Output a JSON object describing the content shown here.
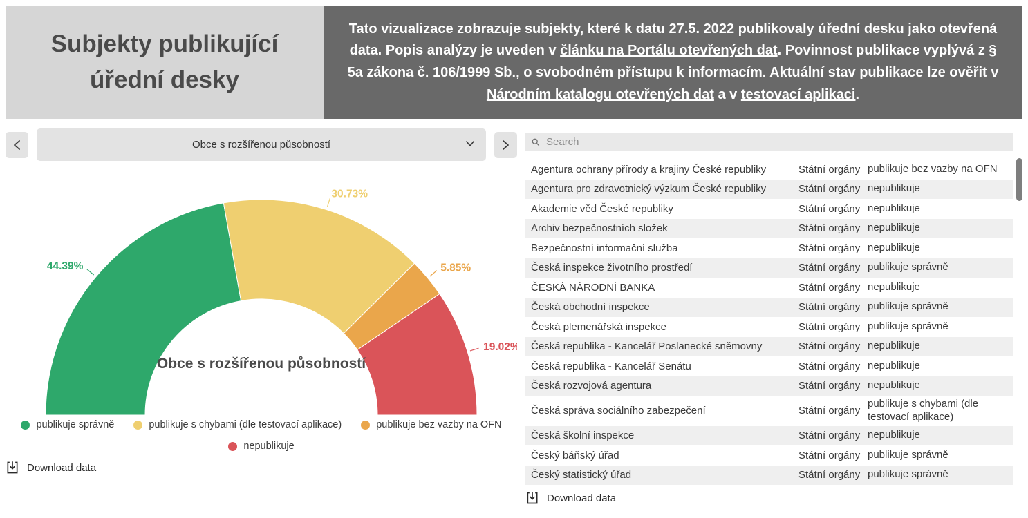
{
  "header": {
    "title_line1": "Subjekty publikující",
    "title_line2": "úřední desky",
    "description_segments": [
      {
        "text": "Tato vizualizace zobrazuje subjekty, které k datu 27.5. 2022 publikovaly úřední desku jako otevřená data. Popis analýzy je uveden v ",
        "link": false
      },
      {
        "text": "článku na Portálu otevřených dat",
        "link": true
      },
      {
        "text": ". Povinnost publikace vyplývá z § 5a zákona č. 106/1999 Sb., o svobodném přístupu k informacím. Aktuální stav publikace lze ověřit v ",
        "link": false
      },
      {
        "text": "Národním katalogu otevřených dat",
        "link": true
      },
      {
        "text": " a v ",
        "link": false
      },
      {
        "text": "testovací aplikaci",
        "link": true
      },
      {
        "text": ".",
        "link": false
      }
    ]
  },
  "selector": {
    "value": "Obce s rozšířenou působností"
  },
  "chart_data": {
    "type": "pie",
    "variant": "half-donut",
    "title": "Obce s rozšířenou působností",
    "categories": [
      "publikuje správně",
      "publikuje s chybami (dle testovací aplikace)",
      "publikuje bez vazby na OFN",
      "nepublikuje"
    ],
    "values": [
      44.39,
      30.73,
      5.85,
      19.02
    ],
    "value_labels": [
      "44.39%",
      "30.73%",
      "5.85%",
      "19.02%"
    ],
    "colors": [
      "#2EA86B",
      "#EFCF70",
      "#EAA64B",
      "#DA5459"
    ],
    "legend_position": "bottom",
    "center_title_color": "#4A4A4A"
  },
  "downloads": {
    "left": "Download data",
    "right": "Download data"
  },
  "search": {
    "placeholder": "Search"
  },
  "table": {
    "columns": [
      "name",
      "category",
      "status"
    ],
    "rows": [
      [
        "Agentura ochrany přírody a krajiny České republiky",
        "Státní orgány",
        "publikuje bez vazby na OFN"
      ],
      [
        "Agentura pro zdravotnický výzkum České republiky",
        "Státní orgány",
        "nepublikuje"
      ],
      [
        "Akademie věd České republiky",
        "Státní orgány",
        "nepublikuje"
      ],
      [
        "Archiv bezpečnostních složek",
        "Státní orgány",
        "nepublikuje"
      ],
      [
        "Bezpečnostní informační služba",
        "Státní orgány",
        "nepublikuje"
      ],
      [
        "Česká inspekce životního prostředí",
        "Státní orgány",
        "publikuje správně"
      ],
      [
        "ČESKÁ NÁRODNÍ BANKA",
        "Státní orgány",
        "nepublikuje"
      ],
      [
        "Česká obchodní inspekce",
        "Státní orgány",
        "publikuje správně"
      ],
      [
        "Česká plemenářská inspekce",
        "Státní orgány",
        "publikuje správně"
      ],
      [
        "Česká republika - Kancelář Poslanecké sněmovny",
        "Státní orgány",
        "nepublikuje"
      ],
      [
        "Česká republika - Kancelář Senátu",
        "Státní orgány",
        "nepublikuje"
      ],
      [
        "Česká rozvojová agentura",
        "Státní orgány",
        "nepublikuje"
      ],
      [
        "Česká správa sociálního zabezpečení",
        "Státní orgány",
        "publikuje s chybami (dle testovací aplikace)"
      ],
      [
        "Česká školní inspekce",
        "Státní orgány",
        "nepublikuje"
      ],
      [
        "Český báňský úřad",
        "Státní orgány",
        "publikuje správně"
      ],
      [
        "Český statistický úřad",
        "Státní orgány",
        "publikuje správně"
      ]
    ]
  }
}
